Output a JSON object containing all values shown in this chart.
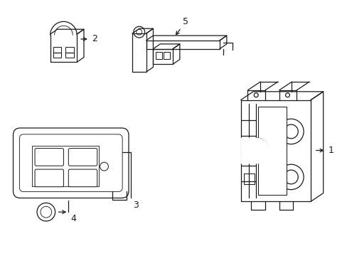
{
  "background_color": "#ffffff",
  "line_color": "#1a1a1a",
  "line_width": 0.9,
  "figsize": [
    4.89,
    3.6
  ],
  "dpi": 100,
  "labels": [
    "1",
    "2",
    "3",
    "4",
    "5"
  ]
}
